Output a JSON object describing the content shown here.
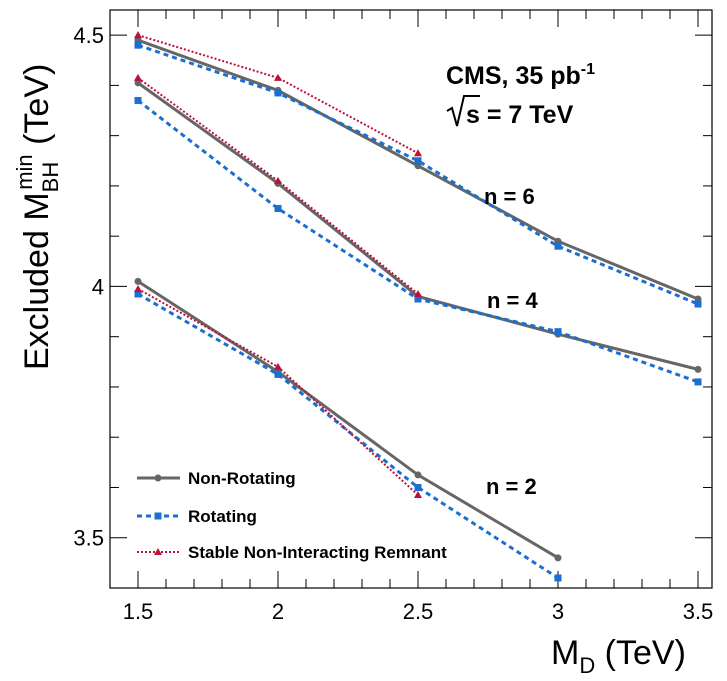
{
  "chart_data": {
    "type": "line",
    "title": "",
    "xlabel_main": "M",
    "xlabel_sub": "D",
    "xlabel_unit": " (TeV)",
    "ylabel_main": "Excluded M",
    "ylabel_sub": "BH",
    "ylabel_sup": "min",
    "ylabel_unit": " (TeV)",
    "xlim": [
      1.4,
      3.55
    ],
    "ylim": [
      3.4,
      4.55
    ],
    "xticks": [
      1.5,
      2,
      2.5,
      3,
      3.5
    ],
    "xtick_labels": [
      "1.5",
      "2",
      "2.5",
      "3",
      "3.5"
    ],
    "yticks": [
      3.5,
      4,
      4.5
    ],
    "ytick_labels": [
      "3.5",
      "4",
      "4.5"
    ],
    "annotations": {
      "experiment": "CMS, 35 pb",
      "lumi_sup": "-1",
      "sqrt_s": "s = 7 TeV"
    },
    "curve_labels": [
      "n = 6",
      "n = 4",
      "n = 2"
    ],
    "legend": {
      "position": "bottom-left",
      "entries": [
        {
          "label": "Non-Rotating",
          "color": "#666666",
          "marker": "circle",
          "dash": "solid"
        },
        {
          "label": "Rotating",
          "color": "#1a6fd0",
          "marker": "square",
          "dash": "dashed"
        },
        {
          "label": "Stable Non-Interacting Remnant",
          "color": "#c0103a",
          "marker": "triangle",
          "dash": "dotted"
        }
      ]
    },
    "series": [
      {
        "group": "n = 6",
        "style": 0,
        "x": [
          1.5,
          2,
          2.5,
          3,
          3.5
        ],
        "y": [
          4.49,
          4.39,
          4.24,
          4.09,
          3.975
        ]
      },
      {
        "group": "n = 6",
        "style": 1,
        "x": [
          1.5,
          2,
          2.5,
          3,
          3.5
        ],
        "y": [
          4.48,
          4.385,
          4.25,
          4.08,
          3.965
        ]
      },
      {
        "group": "n = 6",
        "style": 2,
        "x": [
          1.5,
          2,
          2.5
        ],
        "y": [
          4.5,
          4.415,
          4.265
        ]
      },
      {
        "group": "n = 4",
        "style": 0,
        "x": [
          1.5,
          2,
          2.5,
          3,
          3.5
        ],
        "y": [
          4.405,
          4.205,
          3.98,
          3.905,
          3.835
        ]
      },
      {
        "group": "n = 4",
        "style": 1,
        "x": [
          1.5,
          2,
          2.5,
          3,
          3.5
        ],
        "y": [
          4.37,
          4.155,
          3.975,
          3.91,
          3.81
        ]
      },
      {
        "group": "n = 4",
        "style": 2,
        "x": [
          1.5,
          2,
          2.5
        ],
        "y": [
          4.415,
          4.21,
          3.985
        ]
      },
      {
        "group": "n = 2",
        "style": 0,
        "x": [
          1.5,
          2,
          2.5,
          3
        ],
        "y": [
          4.01,
          3.83,
          3.625,
          3.46
        ]
      },
      {
        "group": "n = 2",
        "style": 1,
        "x": [
          1.5,
          2,
          2.5,
          3
        ],
        "y": [
          3.985,
          3.825,
          3.6,
          3.42
        ]
      },
      {
        "group": "n = 2",
        "style": 2,
        "x": [
          1.5,
          2,
          2.5
        ],
        "y": [
          3.995,
          3.84,
          3.585
        ]
      }
    ]
  }
}
